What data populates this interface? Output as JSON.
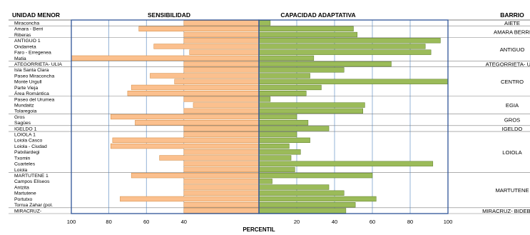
{
  "chart_data": {
    "type": "bar",
    "orientation": "horizontal-diverging",
    "headers": {
      "unidad": "UNIDAD MENOR",
      "sensibilidad": "SENSIBILIDAD",
      "capacidad": "CAPACIDAD ADAPTATIVA",
      "barrio": "BARRIO"
    },
    "xlabel": "PERCENTIL",
    "left_ticks": [
      "100",
      "80",
      "60",
      "40"
    ],
    "right_ticks": [
      "20",
      "40",
      "60",
      "80",
      "100"
    ],
    "xlim": [
      0,
      100
    ],
    "colors": {
      "sensibilidad": "#fbc08e",
      "capacidad": "#9bbb59",
      "grid": "#4f81bd",
      "border": "#2f5597"
    },
    "units": [
      {
        "name": "Miraconcha",
        "sensibilidad": 40,
        "capacidad": 6
      },
      {
        "name": "Amara - Berri",
        "sensibilidad": 64,
        "capacidad": 50
      },
      {
        "name": "Riberas",
        "sensibilidad": 40,
        "capacidad": 52
      },
      {
        "name": "ANTIGUO 1",
        "sensibilidad": 40,
        "capacidad": 96
      },
      {
        "name": "Ondarreta",
        "sensibilidad": 56,
        "capacidad": 88
      },
      {
        "name": "Faro - Erregenea",
        "sensibilidad": 37,
        "capacidad": 91
      },
      {
        "name": "Matia",
        "sensibilidad": 100,
        "capacidad": 29
      },
      {
        "name": "ATEGORRIETA- ULIA",
        "sensibilidad": 40,
        "capacidad": 70
      },
      {
        "name": "Isla Santa Clara",
        "sensibilidad": 40,
        "capacidad": 45
      },
      {
        "name": "Paseo Miraconcha",
        "sensibilidad": 58,
        "capacidad": 27
      },
      {
        "name": "Monte Urgull",
        "sensibilidad": 45,
        "capacidad": 100
      },
      {
        "name": "Parte Vieja",
        "sensibilidad": 68,
        "capacidad": 33
      },
      {
        "name": "Área Romántica",
        "sensibilidad": 70,
        "capacidad": 25
      },
      {
        "name": "Paseo del Urumea",
        "sensibilidad": 40,
        "capacidad": 6
      },
      {
        "name": "Mundaitz",
        "sensibilidad": 35,
        "capacidad": 56
      },
      {
        "name": "Tolaregoia",
        "sensibilidad": 40,
        "capacidad": 55
      },
      {
        "name": "Gros",
        "sensibilidad": 79,
        "capacidad": 20
      },
      {
        "name": "Sagües",
        "sensibilidad": 66,
        "capacidad": 26
      },
      {
        "name": "IGELDO 1",
        "sensibilidad": 40,
        "capacidad": 37
      },
      {
        "name": "LOIOLA 1",
        "sensibilidad": 40,
        "capacidad": 20
      },
      {
        "name": "Loiola Casco",
        "sensibilidad": 78,
        "capacidad": 27
      },
      {
        "name": "Loiola - Ciudad",
        "sensibilidad": 79,
        "capacidad": 16
      },
      {
        "name": "Patxilardegi",
        "sensibilidad": 40,
        "capacidad": 22
      },
      {
        "name": "Txomin",
        "sensibilidad": 53,
        "capacidad": 17
      },
      {
        "name": "Cuarteles",
        "sensibilidad": 40,
        "capacidad": 92
      },
      {
        "name": "Loiola",
        "sensibilidad": 40,
        "capacidad": 19
      },
      {
        "name": "MARTUTENE 1",
        "sensibilidad": 68,
        "capacidad": 60
      },
      {
        "name": "Campos Elíseos",
        "sensibilidad": 40,
        "capacidad": 7
      },
      {
        "name": "Antzita",
        "sensibilidad": 40,
        "capacidad": 37
      },
      {
        "name": "Martutene",
        "sensibilidad": 40,
        "capacidad": 45
      },
      {
        "name": "Portutxo",
        "sensibilidad": 74,
        "capacidad": 62
      },
      {
        "name": "Torrua Zahar (pol.",
        "sensibilidad": 40,
        "capacidad": 51
      },
      {
        "name": "MIRACRUZ-",
        "sensibilidad": 40,
        "capacidad": 46
      }
    ],
    "barrios": [
      {
        "name": "AIETE",
        "rows": [
          0,
          0
        ]
      },
      {
        "name": "AMARA BERRI",
        "rows": [
          1,
          2
        ]
      },
      {
        "name": "ANTIGUO",
        "rows": [
          3,
          6
        ]
      },
      {
        "name": "ATEGORRIETA- ULIA",
        "rows": [
          7,
          7
        ]
      },
      {
        "name": "CENTRO",
        "rows": [
          8,
          12
        ]
      },
      {
        "name": "EGIA",
        "rows": [
          13,
          15
        ]
      },
      {
        "name": "GROS",
        "rows": [
          16,
          17
        ]
      },
      {
        "name": "IGELDO",
        "rows": [
          18,
          18
        ]
      },
      {
        "name": "LOIOLA",
        "rows": [
          19,
          25
        ]
      },
      {
        "name": "MARTUTENE",
        "rows": [
          26,
          31
        ]
      },
      {
        "name": "MIRACRUZ- BIDEBIETA",
        "rows": [
          32,
          32
        ]
      }
    ]
  }
}
